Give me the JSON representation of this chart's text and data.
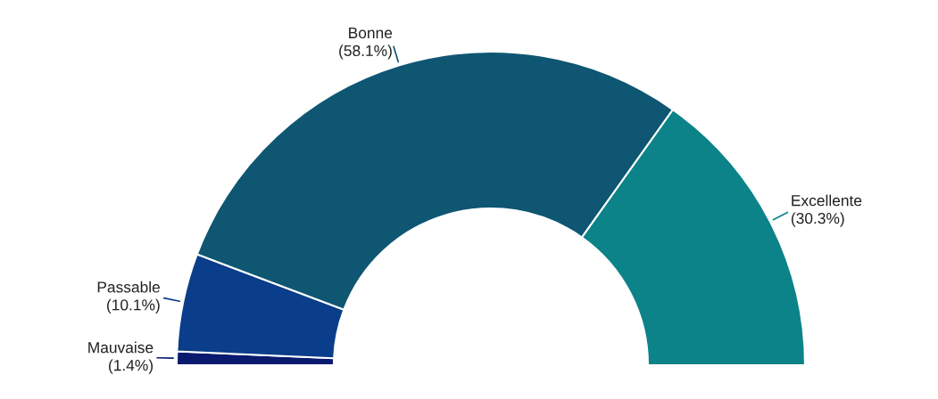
{
  "chart_data": {
    "type": "donut",
    "categories": [
      "Mauvaise",
      "Passable",
      "Bonne",
      "Excellente"
    ],
    "values": [
      1.4,
      10.1,
      58.1,
      30.3
    ],
    "value_labels": [
      "(1.4%)",
      "(10.1%)",
      "(58.1%)",
      "(30.3%)"
    ],
    "colors": [
      "#0a1a6e",
      "#0a3d8a",
      "#0e5672",
      "#0b8388"
    ]
  }
}
